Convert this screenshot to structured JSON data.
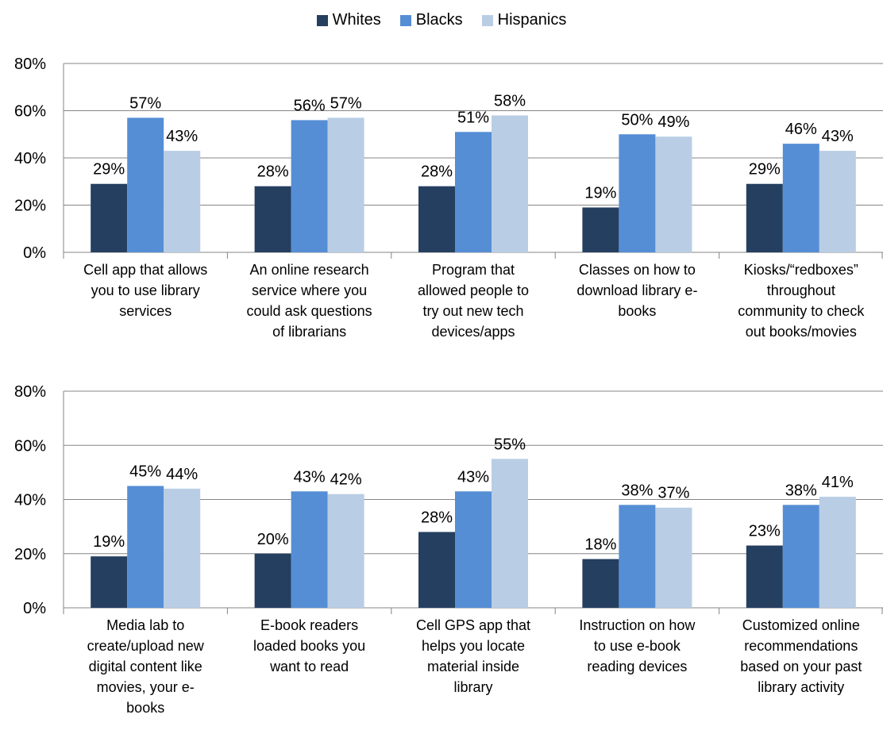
{
  "colors": {
    "Whites": "#243f60",
    "Blacks": "#558ed5",
    "Hispanics": "#b9cde5",
    "axis": "#868686"
  },
  "legend": {
    "items": [
      "Whites",
      "Blacks",
      "Hispanics"
    ]
  },
  "chart_data": [
    {
      "type": "bar",
      "legend_position": "top-center",
      "grid": true,
      "ylim": [
        0,
        80
      ],
      "yticks": [
        "0%",
        "20%",
        "40%",
        "60%",
        "80%"
      ],
      "categories": [
        "Cell app that allows you to use library services",
        "An online research service where you could ask questions of librarians",
        "Program that allowed people to try out new tech devices/apps",
        "Classes on how to download library e-books",
        "Kiosks/“redboxes” throughout community to check out books/movies"
      ],
      "category_lines": [
        [
          "Cell app that allows",
          "you to  use library",
          "services"
        ],
        [
          "An online research",
          "service where you",
          "could ask questions",
          "of librarians"
        ],
        [
          "Program that",
          "allowed people to",
          "try out new tech",
          "devices/apps"
        ],
        [
          "Classes on how to",
          "download library e-",
          "books"
        ],
        [
          "Kiosks/“redboxes”",
          "throughout",
          "community to check",
          "out books/movies"
        ]
      ],
      "series": [
        {
          "name": "Whites",
          "values": [
            29,
            28,
            28,
            19,
            29
          ],
          "labels": [
            "29%",
            "28%",
            "28%",
            "19%",
            "29%"
          ]
        },
        {
          "name": "Blacks",
          "values": [
            57,
            56,
            51,
            50,
            46
          ],
          "labels": [
            "57%",
            "56%",
            "51%",
            "50%",
            "46%"
          ]
        },
        {
          "name": "Hispanics",
          "values": [
            43,
            57,
            58,
            49,
            43
          ],
          "labels": [
            "43%",
            "57%",
            "58%",
            "49%",
            "43%"
          ]
        }
      ]
    },
    {
      "type": "bar",
      "grid": true,
      "ylim": [
        0,
        80
      ],
      "yticks": [
        "0%",
        "20%",
        "40%",
        "60%",
        "80%"
      ],
      "categories": [
        "Media lab to create/upload new digital content like movies, your e-books",
        "E-book readers loaded books you want to read",
        "Cell GPS app that helps you locate material inside library",
        "Instruction on how to use e-book reading devices",
        "Customized online recommendations based on your past library activity"
      ],
      "category_lines": [
        [
          "Media lab to",
          "create/upload new",
          "digital content like",
          "movies, your e-",
          "books"
        ],
        [
          "E-book readers",
          "loaded books you",
          "want to read"
        ],
        [
          "Cell GPS app that",
          "helps you locate",
          "material inside",
          "library"
        ],
        [
          "Instruction on how",
          "to use e-book",
          "reading devices"
        ],
        [
          "Customized online",
          "recommendations",
          "based on your past",
          "library activity"
        ]
      ],
      "series": [
        {
          "name": "Whites",
          "values": [
            19,
            20,
            28,
            18,
            23
          ],
          "labels": [
            "19%",
            "20%",
            "28%",
            "18%",
            "23%"
          ]
        },
        {
          "name": "Blacks",
          "values": [
            45,
            43,
            43,
            38,
            38
          ],
          "labels": [
            "45%",
            "43%",
            "43%",
            "38%",
            "38%"
          ]
        },
        {
          "name": "Hispanics",
          "values": [
            44,
            42,
            55,
            37,
            41
          ],
          "labels": [
            "44%",
            "42%",
            "55%",
            "37%",
            "41%"
          ]
        }
      ]
    }
  ]
}
